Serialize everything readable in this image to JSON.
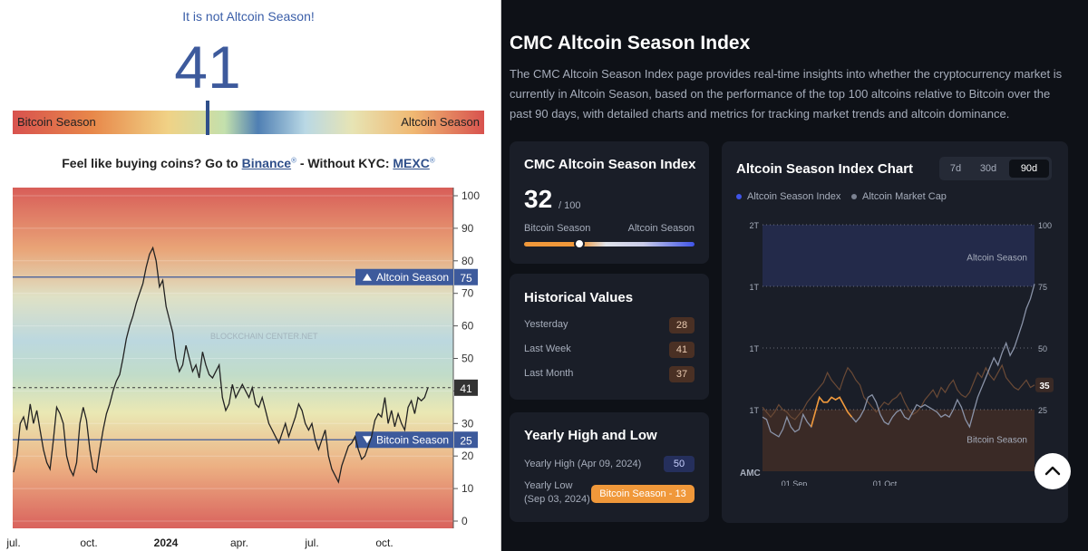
{
  "left": {
    "status": "It is not Altcoin Season!",
    "value": "41",
    "gauge_left_label": "Bitcoin Season",
    "gauge_right_label": "Altcoin Season",
    "gauge_value": 41,
    "buy_prefix": "Feel like buying coins? Go to ",
    "buy_link1": "Binance",
    "buy_middle": " - Without KYC: ",
    "buy_link2": "MEXC",
    "registered": "®",
    "watermark": "BLOCKCHAIN CENTER.NET"
  },
  "chart_data": [
    {
      "type": "line",
      "y_ticks": [
        0,
        10,
        20,
        30,
        40,
        50,
        60,
        70,
        80,
        90,
        100
      ],
      "ylim": [
        0,
        100
      ],
      "x_ticks": [
        "jul.",
        "oct.",
        "2024",
        "apr.",
        "jul.",
        "oct."
      ],
      "series": [
        {
          "values": [
            15,
            20,
            30,
            32,
            28,
            36,
            30,
            34,
            28,
            22,
            18,
            16,
            25,
            35,
            33,
            30,
            20,
            16,
            14,
            18,
            30,
            35,
            31,
            22,
            16,
            15,
            22,
            28,
            33,
            36,
            40,
            43,
            45,
            50,
            56,
            60,
            63,
            67,
            70,
            73,
            78,
            82,
            84,
            80,
            72,
            74,
            66,
            62,
            58,
            50,
            46,
            48,
            54,
            50,
            46,
            48,
            44,
            52,
            48,
            45,
            44,
            46,
            48,
            38,
            34,
            36,
            42,
            38,
            40,
            42,
            40,
            38,
            41,
            36,
            35,
            38,
            34,
            30,
            28,
            26,
            24,
            27,
            30,
            26,
            29,
            32,
            36,
            34,
            30,
            28,
            30,
            25,
            22,
            25,
            28,
            20,
            16,
            14,
            12,
            17,
            20,
            23,
            24,
            26,
            22,
            19,
            20,
            23,
            26,
            31,
            33,
            32,
            38,
            30,
            34,
            29,
            33,
            30,
            28,
            35,
            37,
            33,
            38,
            37,
            38,
            41
          ]
        }
      ],
      "annotations": [
        {
          "label": "Altcoin Season",
          "value": 75
        },
        {
          "label": "Bitcoin Season",
          "value": 25
        },
        {
          "label": "current",
          "value": 41
        }
      ]
    },
    {
      "type": "line",
      "x_ticks": [
        "01 Sep",
        "01 Oct"
      ],
      "y_left_ticks": [
        "2T",
        "1T",
        "1T",
        "1T"
      ],
      "y_right_ticks": [
        100,
        75,
        50,
        35,
        25
      ],
      "ylim": [
        0,
        100
      ],
      "zones": [
        {
          "label": "Altcoin Season",
          "from": 75,
          "to": 100
        },
        {
          "label": "Bitcoin Season",
          "from": 0,
          "to": 25
        }
      ],
      "series": [
        {
          "name": "Altcoin Season Index",
          "values": [
            22,
            21,
            16,
            15,
            14,
            17,
            22,
            18,
            16,
            17,
            23,
            20,
            18,
            24,
            30,
            28,
            28,
            30,
            29,
            30,
            27,
            24,
            22,
            20,
            22,
            25,
            30,
            31,
            28,
            23,
            20,
            19,
            22,
            24,
            25,
            22,
            21,
            24,
            27,
            26,
            27,
            26,
            25,
            24,
            22,
            23,
            22,
            25,
            29,
            26,
            21,
            18,
            24,
            30,
            34,
            38,
            42,
            46,
            43,
            48,
            52,
            47,
            50,
            55,
            60,
            66,
            70,
            76
          ]
        },
        {
          "name": "Altcoin Market Cap",
          "values": [
            26,
            24,
            22,
            24,
            27,
            25,
            24,
            22,
            21,
            23,
            25,
            28,
            30,
            32,
            34,
            36,
            40,
            37,
            35,
            33,
            38,
            42,
            40,
            37,
            35,
            30,
            28,
            26,
            24,
            26,
            28,
            27,
            29,
            30,
            32,
            28,
            25,
            23,
            24,
            26,
            29,
            31,
            33,
            30,
            34,
            32,
            35,
            37,
            33,
            31,
            30,
            32,
            36,
            40,
            38,
            42,
            39,
            37,
            40,
            43,
            38,
            36,
            34,
            33,
            35,
            37,
            34,
            35
          ]
        }
      ]
    }
  ],
  "right": {
    "title": "CMC Altcoin Season Index",
    "description": "The CMC Altcoin Season Index page provides real-time insights into whether the cryptocurrency market is currently in Altcoin Season, based on the performance of the top 100 altcoins relative to Bitcoin over the past 90 days, with detailed charts and metrics for tracking market trends and altcoin dominance.",
    "index_card": {
      "title": "CMC Altcoin Season Index",
      "value": "32",
      "max": "/ 100",
      "left_label": "Bitcoin Season",
      "right_label": "Altcoin Season",
      "slider_value": 32
    },
    "historical": {
      "title": "Historical Values",
      "rows": [
        {
          "label": "Yesterday",
          "value": "28"
        },
        {
          "label": "Last Week",
          "value": "41"
        },
        {
          "label": "Last Month",
          "value": "37"
        }
      ]
    },
    "yearly": {
      "title": "Yearly High and Low",
      "high_label": "Yearly High",
      "high_date": "(Apr 09, 2024)",
      "high_value": "50",
      "low_label": "Yearly Low",
      "low_date": "(Sep 03, 2024)",
      "low_badge": "Bitcoin Season - 13"
    },
    "chart_card": {
      "title": "Altcoin Season Index Chart",
      "tabs": [
        "7d",
        "30d",
        "90d"
      ],
      "active_tab": "90d",
      "legend": [
        "Altcoin Season Index",
        "Altcoin Market Cap"
      ],
      "watermark": "AMC",
      "current_badge": "35"
    },
    "colors": {
      "bg": "#0e1117",
      "card": "#1a1e28",
      "accent_blue": "#3f54e8",
      "accent_orange": "#f0983a"
    }
  }
}
